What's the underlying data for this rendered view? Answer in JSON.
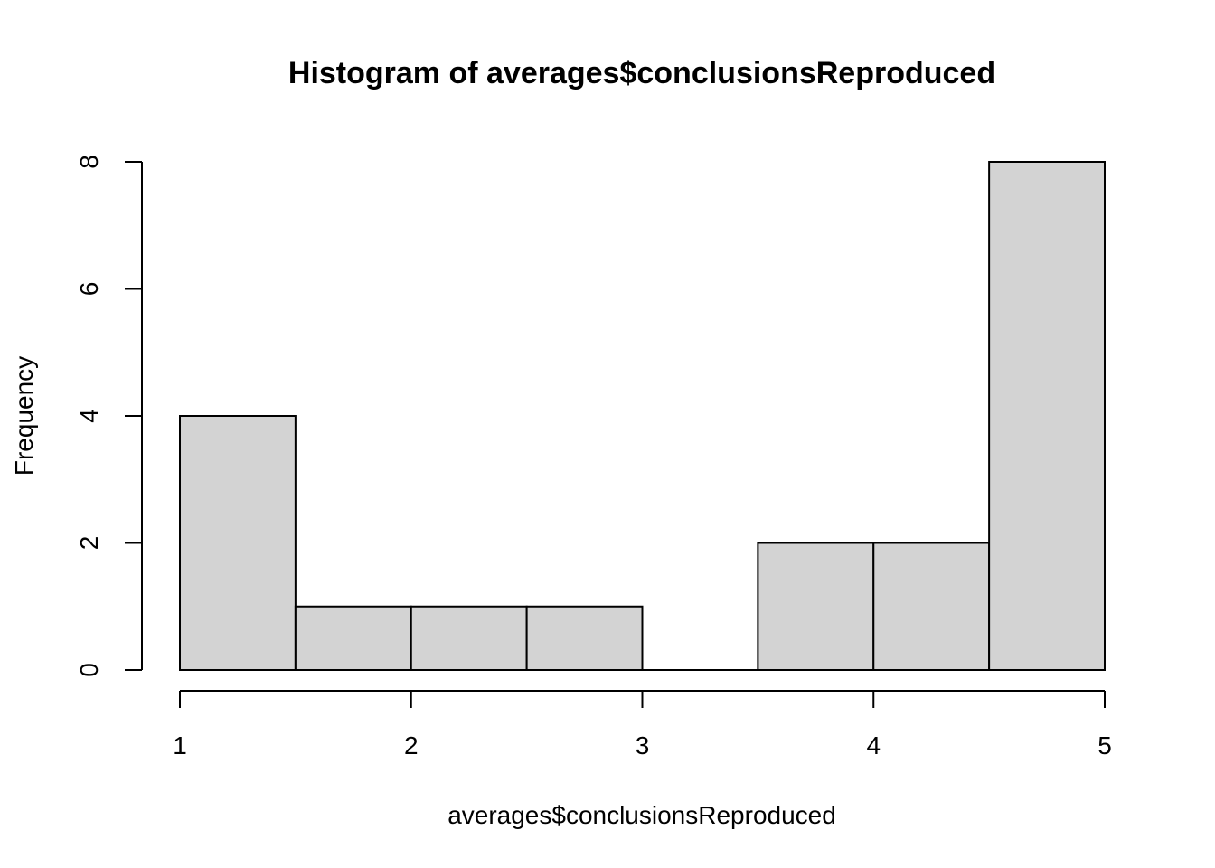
{
  "chart_data": {
    "type": "bar",
    "title": "Histogram of averages$conclusionsReproduced",
    "xlabel": "averages$conclusionsReproduced",
    "ylabel": "Frequency",
    "bins": [
      {
        "start": 1.0,
        "end": 1.5,
        "count": 4
      },
      {
        "start": 1.5,
        "end": 2.0,
        "count": 1
      },
      {
        "start": 2.0,
        "end": 2.5,
        "count": 1
      },
      {
        "start": 2.5,
        "end": 3.0,
        "count": 1
      },
      {
        "start": 3.0,
        "end": 3.5,
        "count": 0
      },
      {
        "start": 3.5,
        "end": 4.0,
        "count": 2
      },
      {
        "start": 4.0,
        "end": 4.5,
        "count": 2
      },
      {
        "start": 4.5,
        "end": 5.0,
        "count": 8
      }
    ],
    "xlim": [
      1,
      5
    ],
    "ylim": [
      0,
      8
    ],
    "xticks": [
      1,
      2,
      3,
      4,
      5
    ],
    "yticks": [
      0,
      2,
      4,
      6,
      8
    ],
    "bar_color": "#d3d3d3",
    "grid": false
  }
}
